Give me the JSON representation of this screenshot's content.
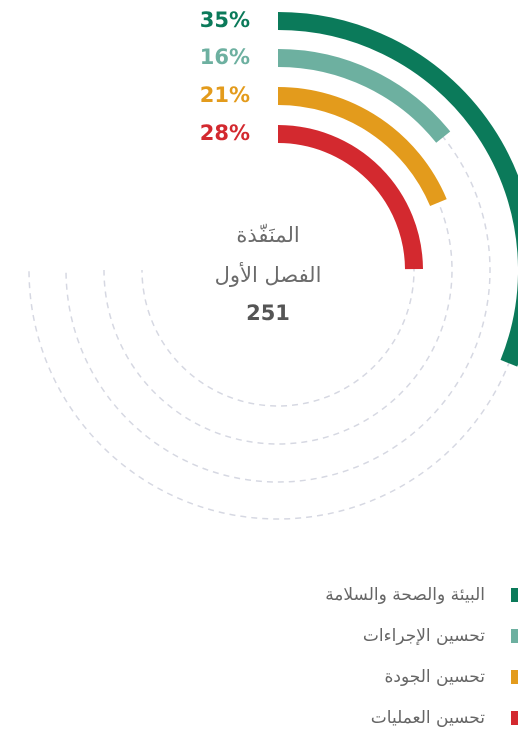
{
  "chart_data": {
    "type": "radial_bar",
    "categories": [
      "البيئة والصحة والسلامة",
      "تحسين الإجراءات",
      "تحسين الجودة",
      "تحسين العمليات"
    ],
    "values": [
      35,
      16,
      21,
      28
    ],
    "value_labels": [
      "35%",
      "16%",
      "21%",
      "28%"
    ],
    "colors": [
      "#0b7a5a",
      "#6db0a0",
      "#e39b1c",
      "#d3292f"
    ],
    "center_label": [
      "المنَفّذة",
      "الفصل الأول"
    ],
    "center_value": 251
  }
}
